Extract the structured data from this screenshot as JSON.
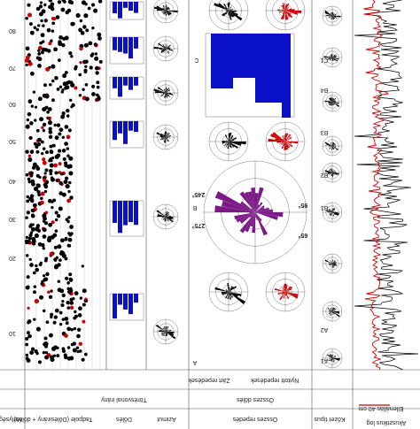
{
  "depth_labels": [
    "80",
    "70",
    "60",
    "50",
    "40",
    "30",
    "20",
    "10"
  ],
  "zone_labels": {
    "c": "C",
    "c1": "C1",
    "b4": "B4",
    "b3": "B3",
    "b2": "B2",
    "b1": "B1",
    "b": "B",
    "a2": "A2",
    "a1": "A1",
    "a": "A"
  },
  "angles": [
    "245°",
    "275°",
    "95°",
    "65°"
  ],
  "columns": [
    "Mélység",
    "Tadpole (Dőlésirány + dőlés)",
    "Dőlés",
    "Törésvonal irány",
    "Azimut",
    "Zárt repedések",
    "Nyitott repedések",
    "Összes dőlés",
    "Összes repedés",
    "Kőzet típus",
    "Ellenállás 40 cm",
    "Akusztikus log"
  ]
}
